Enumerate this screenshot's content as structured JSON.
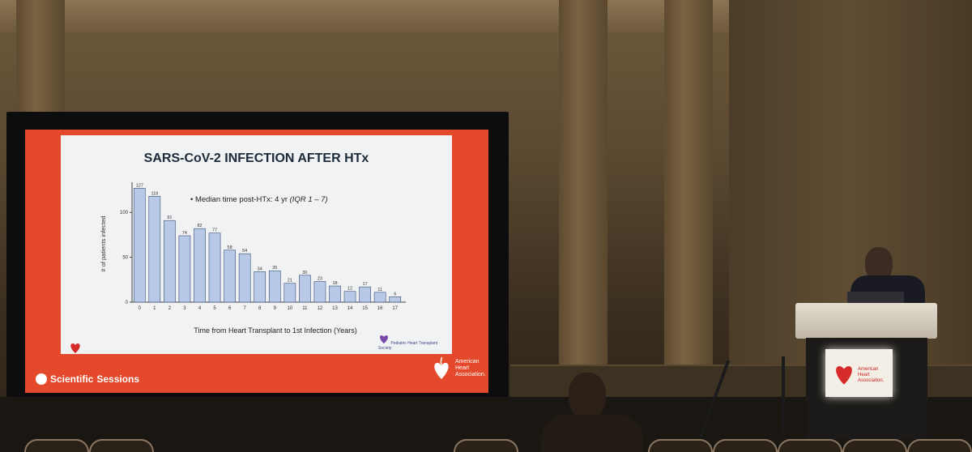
{
  "slide": {
    "title": "SARS-CoV-2 INFECTION AFTER HTx",
    "bullet": "Median time post-HTx: 4 yr",
    "bullet_iqr": "(IQR 1 – 7)",
    "footer_left_a": "Scientific",
    "footer_left_b": "Sessions",
    "aha_line1": "American",
    "aha_line2": "Heart",
    "aha_line3": "Association.",
    "partner_text": "Pediatric Heart Transplant Society"
  },
  "podium": {
    "sign_line1": "American",
    "sign_line2": "Heart",
    "sign_line3": "Association."
  },
  "colors": {
    "screen_orange": "#e3492a",
    "bar_fill": "#b7c9e6",
    "bar_stroke": "#3a4f75"
  },
  "chart_data": {
    "type": "bar",
    "title": "SARS-CoV-2 INFECTION AFTER HTx",
    "xlabel": "Time from Heart Transplant to 1st Infection (Years)",
    "ylabel": "# of patients infected",
    "categories": [
      "0",
      "1",
      "2",
      "3",
      "4",
      "5",
      "6",
      "7",
      "8",
      "9",
      "10",
      "11",
      "12",
      "13",
      "14",
      "15",
      "16",
      "17"
    ],
    "values": [
      127,
      118,
      91,
      74,
      82,
      77,
      58,
      54,
      34,
      35,
      21,
      30,
      23,
      18,
      12,
      17,
      11,
      6
    ],
    "yticks": [
      0,
      50,
      100
    ],
    "ylim": [
      0,
      130
    ],
    "grid": false
  }
}
